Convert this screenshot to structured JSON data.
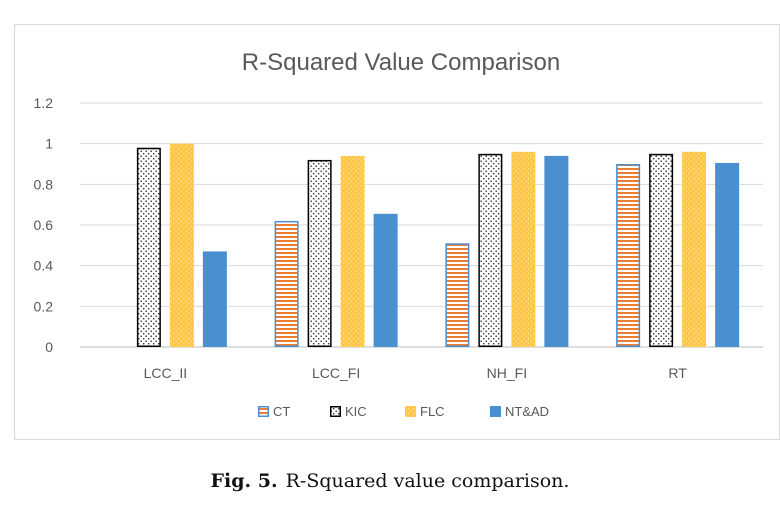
{
  "chart_data": {
    "type": "bar",
    "title": "R-Squared Value Comparison",
    "categories": [
      "LCC_II",
      "LCC_FI",
      "NH_FI",
      "RT"
    ],
    "series": [
      {
        "name": "CT",
        "values": [
          0,
          0.62,
          0.51,
          0.9
        ]
      },
      {
        "name": "KIC",
        "values": [
          0.98,
          0.92,
          0.95,
          0.95
        ]
      },
      {
        "name": "FLC",
        "values": [
          1.0,
          0.94,
          0.96,
          0.96
        ]
      },
      {
        "name": "NT&AD",
        "values": [
          0.47,
          0.655,
          0.94,
          0.905
        ]
      }
    ],
    "ylim": [
      0,
      1.2
    ],
    "yticks": [
      "0",
      "0.2",
      "0.4",
      "0.6",
      "0.8",
      "1",
      "1.2"
    ],
    "grid": true,
    "legend": "bottom",
    "colors": {
      "CT": "#ed7d31",
      "KIC": "#000000",
      "FLC": "#ffc000",
      "NT&AD": "#4a90d0"
    }
  },
  "caption": {
    "label": "Fig. 5.",
    "text": "R-Squared value comparison."
  }
}
